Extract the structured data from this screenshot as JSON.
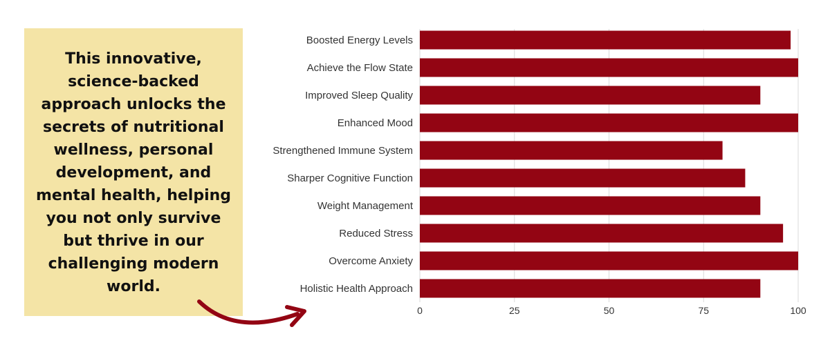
{
  "callout": {
    "text": "This innovative, science-backed approach unlocks the secrets of nutritional wellness, personal development, and mental health, helping you not only survive but thrive in our challenging modern world."
  },
  "chart_data": {
    "type": "bar",
    "orientation": "horizontal",
    "title": "",
    "xlabel": "",
    "ylabel": "",
    "categories": [
      "Boosted Energy Levels",
      "Achieve the Flow State",
      "Improved Sleep Quality",
      "Enhanced Mood",
      "Strengthened Immune System",
      "Sharper Cognitive Function",
      "Weight Management",
      "Reduced Stress",
      "Overcome Anxiety",
      "Holistic Health Approach"
    ],
    "values": [
      98,
      100,
      90,
      100,
      80,
      86,
      90,
      96,
      100,
      90
    ],
    "xlim": [
      0,
      100
    ],
    "x_ticks": [
      0,
      25,
      50,
      75,
      100
    ],
    "grid": true,
    "bar_color": "#930513",
    "grid_color": "#d9d9d9"
  },
  "colors": {
    "callout_background": "#f4e4a6",
    "arrow": "#930513"
  }
}
